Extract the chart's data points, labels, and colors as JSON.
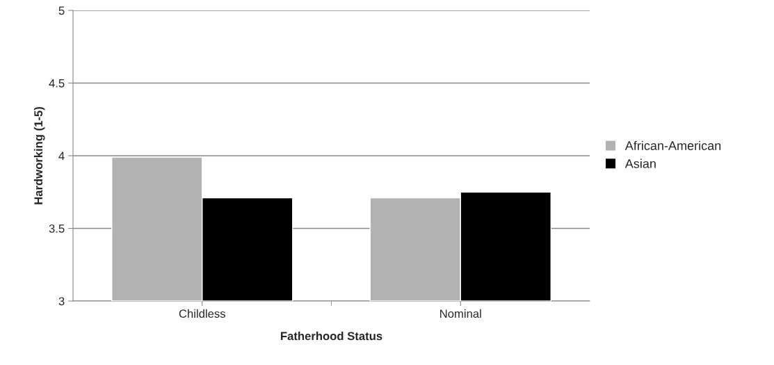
{
  "chart_data": {
    "type": "bar",
    "xlabel": "Fatherhood Status",
    "ylabel": "Hardworking (1-5)",
    "categories": [
      "Childless",
      "Nominal"
    ],
    "series": [
      {
        "name": "African-American",
        "color": "#b2b2b2",
        "values": [
          3.99,
          3.71
        ]
      },
      {
        "name": "Asian",
        "color": "#000000",
        "values": [
          3.71,
          3.75
        ]
      }
    ],
    "ylim": [
      3,
      5
    ],
    "yticks": [
      3,
      3.5,
      4,
      4.5,
      5
    ],
    "grid": "y",
    "legend": "right"
  }
}
